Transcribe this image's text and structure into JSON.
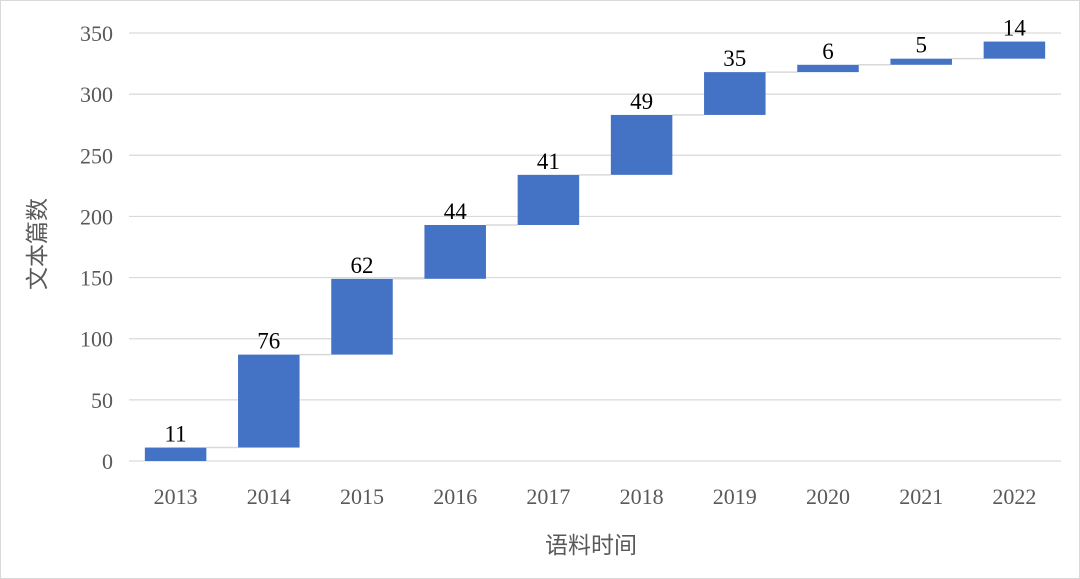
{
  "chart_data": {
    "type": "bar",
    "variant": "waterfall",
    "title": "",
    "xlabel": "语料时间",
    "ylabel": "文本篇数",
    "categories": [
      "2013",
      "2014",
      "2015",
      "2016",
      "2017",
      "2018",
      "2019",
      "2020",
      "2021",
      "2022"
    ],
    "values": [
      11,
      76,
      62,
      44,
      41,
      49,
      35,
      6,
      5,
      14
    ],
    "ylim": [
      0,
      350
    ],
    "yticks": [
      "0",
      "50",
      "100",
      "150",
      "200",
      "250",
      "300",
      "350"
    ],
    "grid": true,
    "legend": "none",
    "colors": {
      "bar": "#4472C4",
      "grid": "#d9d9d9",
      "connector": "#d9d9d9"
    }
  }
}
